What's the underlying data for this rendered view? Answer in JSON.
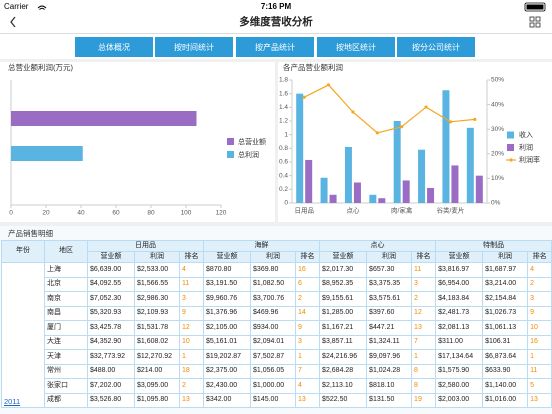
{
  "status_bar": {
    "carrier": "Carrier",
    "time": "7:16 PM"
  },
  "nav": {
    "title": "多维度营收分析"
  },
  "tabs": [
    "总体概况",
    "按时间统计",
    "按产品统计",
    "按地区统计",
    "按分公司统计"
  ],
  "chart_data": [
    {
      "type": "bar",
      "orientation": "horizontal",
      "title": "总营业额利润(万元)",
      "series": [
        {
          "name": "总营业额",
          "color": "#9a6cc4",
          "values": [
            106
          ]
        },
        {
          "name": "总利润",
          "color": "#5ab4e2",
          "values": [
            41
          ]
        }
      ],
      "xlim": [
        0,
        120
      ],
      "xticks": [
        0,
        20,
        40,
        60,
        80,
        100,
        120
      ]
    },
    {
      "type": "bar",
      "title": "各产品营业额利润",
      "categories": [
        "日用品",
        null,
        "点心",
        null,
        "肉/家禽",
        null,
        "谷类/麦片",
        null
      ],
      "series": [
        {
          "name": "收入",
          "type": "bar",
          "color": "#5ab4e2",
          "values": [
            1.6,
            0.37,
            0.82,
            0.12,
            1.2,
            0.78,
            1.65,
            1.1
          ]
        },
        {
          "name": "利润",
          "type": "bar",
          "color": "#9a6cc4",
          "values": [
            0.63,
            0.12,
            0.3,
            0.07,
            0.33,
            0.22,
            0.55,
            0.4
          ]
        },
        {
          "name": "利润率",
          "type": "line",
          "axis": "y2",
          "color": "#f5a623",
          "values": [
            43,
            48,
            37,
            28.5,
            31,
            39,
            33,
            34
          ]
        }
      ],
      "ylim": [
        0,
        1.8
      ],
      "yticks": [
        0,
        0.2,
        0.4,
        0.6,
        0.8,
        1,
        1.2,
        1.4,
        1.6,
        1.8
      ],
      "y2lim": [
        0,
        50
      ],
      "y2ticks": [
        {
          "value": 0,
          "label": "0%"
        },
        {
          "value": 10,
          "label": "10%"
        },
        {
          "value": 20,
          "label": "20%"
        },
        {
          "value": 30,
          "label": "30%"
        },
        {
          "value": 40,
          "label": "40%"
        },
        {
          "value": 50,
          "label": "50%"
        }
      ]
    }
  ],
  "table": {
    "title": "产品销售明细",
    "header": {
      "year": "年份",
      "region": "地区",
      "groups": [
        {
          "name": "日用品",
          "columns": [
            "营业额",
            "利润",
            "排名"
          ]
        },
        {
          "name": "海鲜",
          "columns": [
            "营业额",
            "利润",
            "排名"
          ]
        },
        {
          "name": "点心",
          "columns": [
            "营业额",
            "利润",
            "排名"
          ]
        },
        {
          "name": "特制品",
          "columns": [
            "营业额",
            "利润",
            "排名"
          ]
        }
      ]
    },
    "year": "2011",
    "rows": [
      {
        "region": "上海",
        "cells": [
          "$6,639.00",
          "$2,533.00",
          "4",
          "$870.80",
          "$369.80",
          "16",
          "$2,017.30",
          "$657.30",
          "11",
          "$3,816.97",
          "$1,687.97",
          "4"
        ]
      },
      {
        "region": "北京",
        "cells": [
          "$4,092.55",
          "$1,566.55",
          "11",
          "$3,191.50",
          "$1,082.50",
          "6",
          "$8,952.35",
          "$3,375.35",
          "3",
          "$6,954.00",
          "$3,214.00",
          "2"
        ]
      },
      {
        "region": "南京",
        "cells": [
          "$7,052.30",
          "$2,986.30",
          "3",
          "$9,960.76",
          "$3,700.76",
          "2",
          "$9,155.61",
          "$3,575.61",
          "2",
          "$4,183.84",
          "$2,154.84",
          "3"
        ]
      },
      {
        "region": "南昌",
        "cells": [
          "$5,320.93",
          "$2,109.93",
          "9",
          "$1,376.96",
          "$469.96",
          "14",
          "$1,285.00",
          "$397.60",
          "12",
          "$2,481.73",
          "$1,026.73",
          "9"
        ]
      },
      {
        "region": "厦门",
        "cells": [
          "$3,425.78",
          "$1,531.78",
          "12",
          "$2,105.00",
          "$934.00",
          "9",
          "$1,167.21",
          "$447.21",
          "13",
          "$2,081.13",
          "$1,061.13",
          "10"
        ]
      },
      {
        "region": "大连",
        "cells": [
          "$4,352.90",
          "$1,608.02",
          "10",
          "$5,161.01",
          "$2,094.01",
          "3",
          "$3,857.11",
          "$1,324.11",
          "7",
          "$311.00",
          "$106.31",
          "16"
        ]
      },
      {
        "region": "天津",
        "cells": [
          "$32,773.92",
          "$12,270.92",
          "1",
          "$19,202.87",
          "$7,502.87",
          "1",
          "$24,216.96",
          "$9,097.96",
          "1",
          "$17,134.64",
          "$6,873.64",
          "1"
        ]
      },
      {
        "region": "常州",
        "cells": [
          "$488.00",
          "$214.00",
          "18",
          "$2,375.00",
          "$1,056.05",
          "7",
          "$2,684.28",
          "$1,024.28",
          "8",
          "$1,575.90",
          "$633.90",
          "11"
        ]
      },
      {
        "region": "张家口",
        "cells": [
          "$7,202.00",
          "$3,095.00",
          "2",
          "$2,430.00",
          "$1,000.00",
          "4",
          "$2,113.10",
          "$818.10",
          "8",
          "$2,580.00",
          "$1,140.00",
          "5"
        ]
      },
      {
        "region": "成都",
        "cells": [
          "$3,526.80",
          "$1,095.80",
          "13",
          "$342.00",
          "$145.00",
          "13",
          "$522.50",
          "$131.50",
          "19",
          "$2,003.00",
          "$1,016.00",
          "13"
        ]
      }
    ]
  }
}
